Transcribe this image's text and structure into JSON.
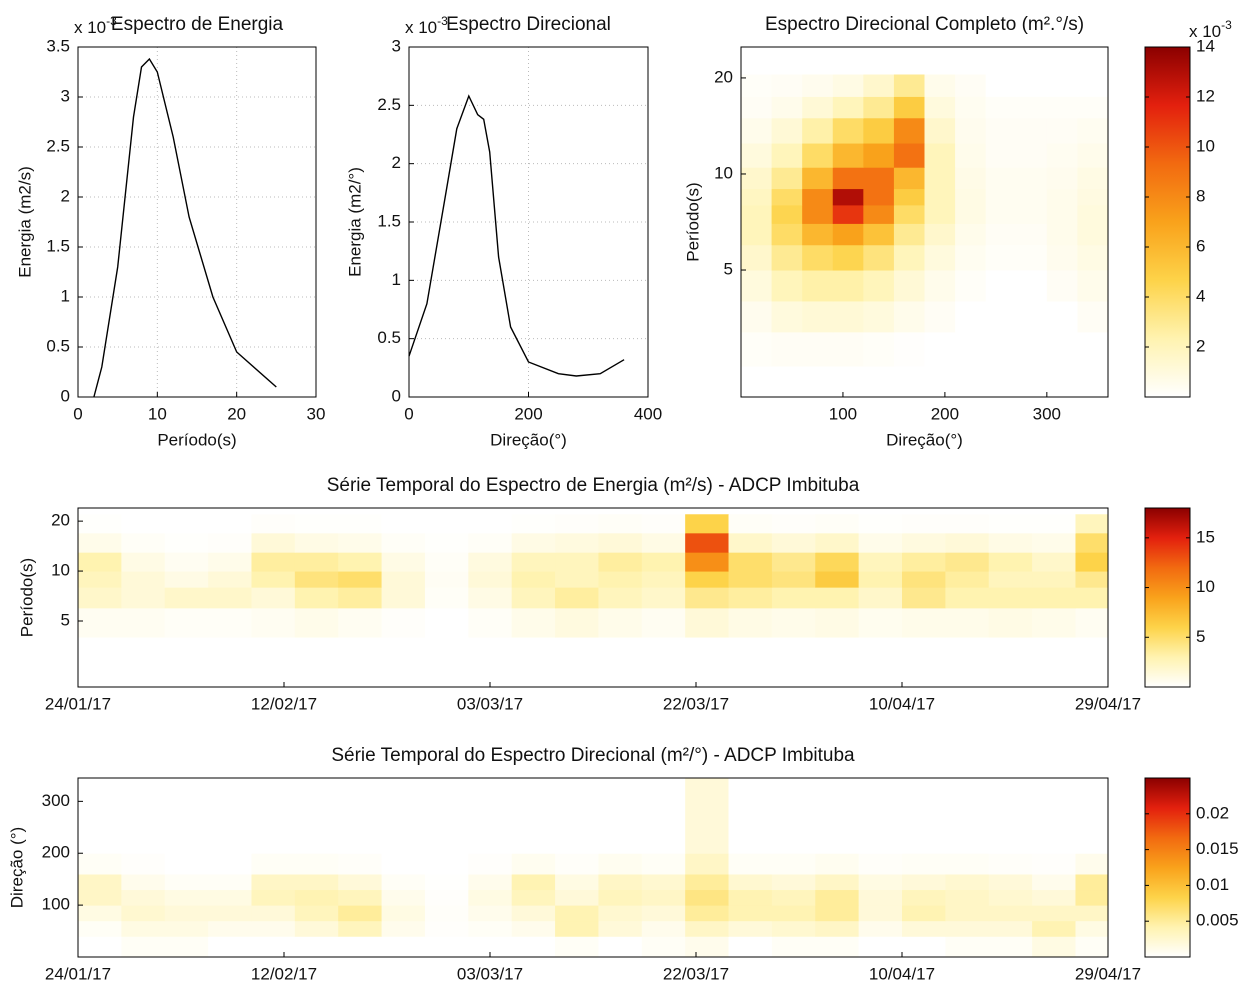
{
  "chart_data": [
    {
      "type": "line",
      "title": "Espectro de Energia",
      "xlabel": "Período(s)",
      "ylabel": "Energia (m2/s)",
      "y_scale_label": {
        "base": "x 10",
        "exponent": "-3"
      },
      "x": [
        2,
        3,
        5,
        7,
        8,
        9,
        10,
        12,
        14,
        17,
        20,
        25
      ],
      "values": [
        0,
        0.3,
        1.3,
        2.8,
        3.3,
        3.38,
        3.25,
        2.6,
        1.8,
        1.0,
        0.45,
        0.1
      ],
      "color": "#000000",
      "xlim": [
        0,
        30
      ],
      "xticks": [
        0,
        10,
        20,
        30
      ],
      "ylim": [
        0,
        3.5
      ],
      "yticks": [
        0,
        0.5,
        1,
        1.5,
        2,
        2.5,
        3,
        3.5
      ],
      "grid": true
    },
    {
      "type": "line",
      "title": "Espectro Direcional",
      "xlabel": "Direção(°)",
      "ylabel": "Energia (m2/°)",
      "y_scale_label": {
        "base": "x 10",
        "exponent": "-3"
      },
      "x": [
        0,
        30,
        60,
        80,
        100,
        115,
        125,
        135,
        150,
        170,
        200,
        250,
        280,
        320,
        360
      ],
      "values": [
        0.35,
        0.8,
        1.7,
        2.3,
        2.58,
        2.42,
        2.38,
        2.1,
        1.2,
        0.6,
        0.3,
        0.2,
        0.18,
        0.2,
        0.32
      ],
      "color": "#000000",
      "xlim": [
        0,
        400
      ],
      "xticks": [
        0,
        200,
        400
      ],
      "ylim": [
        0,
        3
      ],
      "yticks": [
        0,
        0.5,
        1,
        1.5,
        2,
        2.5,
        3
      ],
      "grid": true
    },
    {
      "type": "heatmap",
      "title": "Espectro Direcional Completo (m².°/s)",
      "xlabel": "Direção(°)",
      "ylabel": "Período(s)",
      "colorbar_scale_label": {
        "base": "x 10",
        "exponent": "-3"
      },
      "xbins": [
        0,
        30,
        60,
        90,
        120,
        150,
        180,
        210,
        240,
        270,
        300,
        330,
        360
      ],
      "ybins": [
        2.5,
        3.2,
        4,
        5,
        6,
        7,
        8,
        9,
        10.5,
        12.5,
        15,
        17.5,
        20.5
      ],
      "z": [
        [
          0.2,
          0.3,
          0.3,
          0.3,
          0.2,
          0.1,
          0,
          0,
          0,
          0,
          0,
          0
        ],
        [
          0.5,
          1,
          1.2,
          1.2,
          1,
          0.6,
          0.3,
          0,
          0,
          0,
          0,
          0.3
        ],
        [
          1,
          2,
          2.5,
          2.5,
          2,
          1.2,
          0.6,
          0.2,
          0,
          0,
          0.3,
          0.6
        ],
        [
          1.5,
          3,
          4,
          4.5,
          3.5,
          2,
          1,
          0.4,
          0.2,
          0.2,
          0.5,
          0.8
        ],
        [
          2,
          4,
          6,
          7,
          5.5,
          3,
          1.5,
          0.6,
          0.3,
          0.3,
          0.6,
          1
        ],
        [
          2,
          4.5,
          8,
          11,
          8,
          4,
          2,
          0.8,
          0.4,
          0.4,
          0.6,
          1
        ],
        [
          1.8,
          4,
          8,
          13,
          9,
          5,
          2,
          0.8,
          0.4,
          0.4,
          0.6,
          0.9
        ],
        [
          1.5,
          3,
          6,
          9,
          9,
          6,
          2,
          0.7,
          0.4,
          0.4,
          0.5,
          0.8
        ],
        [
          1,
          2,
          4,
          6,
          7,
          9,
          2,
          0.6,
          0.3,
          0.3,
          0.4,
          0.6
        ],
        [
          0.6,
          1.2,
          2.5,
          4,
          5,
          8,
          1.5,
          0.5,
          0.3,
          0.3,
          0.3,
          0.4
        ],
        [
          0.3,
          0.6,
          1.2,
          2,
          3,
          5,
          1,
          0.4,
          0.2,
          0.2,
          0.2,
          0.2
        ],
        [
          0.2,
          0.3,
          0.5,
          0.8,
          1.5,
          3,
          0.6,
          0.3,
          0,
          0,
          0,
          0
        ]
      ],
      "xlim": [
        0,
        360
      ],
      "xticks": [
        100,
        200,
        300
      ],
      "ylim": [
        2,
        25
      ],
      "yticks": [
        5,
        10,
        20
      ],
      "ylog": true,
      "clim": [
        0,
        14
      ],
      "colorbar_ticks": [
        2,
        4,
        6,
        8,
        10,
        12,
        14
      ],
      "colormap": [
        "#ffffff",
        "#fff3b0",
        "#fdd349",
        "#f9a21b",
        "#f26a10",
        "#e3200e",
        "#8b0000"
      ]
    },
    {
      "type": "heatmap",
      "title": "Série Temporal do Espectro de Energia (m²/s) - ADCP Imbituba",
      "ylabel": "Período(s)",
      "x": [
        "24/01/17",
        "28/01/17",
        "01/02/17",
        "05/02/17",
        "09/02/17",
        "13/02/17",
        "17/02/17",
        "21/02/17",
        "25/02/17",
        "01/03/17",
        "05/03/17",
        "09/03/17",
        "13/03/17",
        "17/03/17",
        "21/03/17",
        "25/03/17",
        "29/03/17",
        "02/04/17",
        "06/04/17",
        "10/04/17",
        "14/04/17",
        "18/04/17",
        "22/04/17",
        "26/04/17"
      ],
      "ybins": [
        4,
        6,
        8,
        10,
        13,
        17,
        22
      ],
      "z": [
        [
          0.5,
          0.5,
          0.3,
          0.3,
          0.5,
          0.8,
          0.5,
          0.2,
          0,
          0.3,
          0.8,
          1.2,
          0.8,
          0.5,
          1.5,
          1,
          0.8,
          1,
          0.6,
          0.8,
          0.8,
          1,
          0.8,
          0.5
        ],
        [
          2,
          1.5,
          2,
          2,
          1.5,
          3,
          3.5,
          1.5,
          0.3,
          1,
          2.5,
          3.5,
          2.5,
          2,
          4,
          3.5,
          3,
          3,
          2,
          4,
          3,
          3,
          3,
          3
        ],
        [
          2.5,
          1.5,
          1,
          1.5,
          3,
          4.5,
          5,
          1.5,
          0.4,
          1.5,
          3,
          2.5,
          3,
          2.5,
          6,
          5,
          4.5,
          6.5,
          3,
          4.5,
          3.5,
          2.5,
          2.5,
          4
        ],
        [
          3,
          1,
          0.5,
          0.8,
          3.5,
          3.5,
          3,
          1,
          0.3,
          1.2,
          2.5,
          2.5,
          3.5,
          3,
          10,
          5,
          4,
          5.5,
          2.5,
          3.5,
          4,
          3,
          2,
          6
        ],
        [
          0.8,
          0.3,
          0.1,
          0.2,
          1.5,
          1,
          0.8,
          0.3,
          0.1,
          0.3,
          1,
          1.2,
          1.5,
          1,
          13,
          2,
          1.5,
          2,
          0.8,
          1.2,
          1.5,
          1,
          0.8,
          5
        ],
        [
          0.1,
          0,
          0,
          0,
          0.2,
          0.1,
          0.1,
          0,
          0,
          0,
          0.1,
          0.2,
          0.3,
          0.2,
          6,
          0.3,
          0.2,
          0.3,
          0.1,
          0.2,
          0.2,
          0.1,
          0.1,
          2.5
        ]
      ],
      "xlim": [
        "24/01/17",
        "29/04/17"
      ],
      "xticks": [
        "24/01/17",
        "12/02/17",
        "03/03/17",
        "22/03/17",
        "10/04/17",
        "29/04/17"
      ],
      "ylim": [
        2,
        24
      ],
      "yticks": [
        5,
        10,
        20
      ],
      "ylog": true,
      "clim": [
        0,
        18
      ],
      "colorbar_ticks": [
        5,
        10,
        15
      ],
      "colormap": [
        "#ffffff",
        "#fff3b0",
        "#fdd349",
        "#f9a21b",
        "#f26a10",
        "#e3200e",
        "#8b0000"
      ]
    },
    {
      "type": "heatmap",
      "title": "Série Temporal do Espectro Direcional (m²/°) - ADCP Imbituba",
      "ylabel": "Direção (°)",
      "x": [
        "24/01/17",
        "28/01/17",
        "01/02/17",
        "05/02/17",
        "09/02/17",
        "13/02/17",
        "17/02/17",
        "21/02/17",
        "25/02/17",
        "01/03/17",
        "05/03/17",
        "09/03/17",
        "13/03/17",
        "17/03/17",
        "21/03/17",
        "25/03/17",
        "29/03/17",
        "02/04/17",
        "06/04/17",
        "10/04/17",
        "14/04/17",
        "18/04/17",
        "22/04/17",
        "26/04/17"
      ],
      "ybins": [
        0,
        40,
        70,
        100,
        130,
        160,
        200,
        345
      ],
      "z": [
        [
          0,
          0.0005,
          0.0005,
          0,
          0,
          0,
          0,
          0,
          0,
          0,
          0,
          0.0005,
          0,
          0.0005,
          0.001,
          0,
          0.0005,
          0.0005,
          0,
          0,
          0.0005,
          0.0005,
          0.0015,
          0.0005
        ],
        [
          0.0005,
          0.0015,
          0.0015,
          0.001,
          0.001,
          0.002,
          0.0035,
          0.001,
          0.0002,
          0.0005,
          0.001,
          0.004,
          0.002,
          0.001,
          0.003,
          0.002,
          0.0025,
          0.003,
          0.001,
          0.002,
          0.002,
          0.002,
          0.004,
          0.0015
        ],
        [
          0.0015,
          0.0025,
          0.002,
          0.002,
          0.002,
          0.0035,
          0.005,
          0.0015,
          0.0003,
          0.001,
          0.002,
          0.004,
          0.0025,
          0.002,
          0.005,
          0.004,
          0.004,
          0.005,
          0.002,
          0.004,
          0.003,
          0.003,
          0.003,
          0.003
        ],
        [
          0.003,
          0.002,
          0.0015,
          0.0015,
          0.0035,
          0.004,
          0.0035,
          0.001,
          0.0002,
          0.0015,
          0.0035,
          0.002,
          0.0035,
          0.003,
          0.006,
          0.004,
          0.0035,
          0.005,
          0.002,
          0.0035,
          0.003,
          0.0025,
          0.002,
          0.005
        ],
        [
          0.003,
          0.001,
          0.0005,
          0.0005,
          0.003,
          0.003,
          0.002,
          0.0005,
          0.0001,
          0.001,
          0.004,
          0.0015,
          0.003,
          0.0025,
          0.005,
          0.0025,
          0.002,
          0.003,
          0.0015,
          0.002,
          0.0025,
          0.002,
          0.001,
          0.005
        ],
        [
          0.0005,
          0.0002,
          0,
          0,
          0.0005,
          0.0005,
          0.0003,
          0,
          0,
          0.0002,
          0.0008,
          0.0003,
          0.0008,
          0.0005,
          0.003,
          0.0005,
          0.0005,
          0.0008,
          0.0003,
          0.0005,
          0.0005,
          0.0003,
          0.0002,
          0.001
        ],
        [
          0,
          0,
          0,
          0,
          0,
          0,
          0,
          0,
          0,
          0,
          0,
          0,
          0,
          0,
          0.002,
          0,
          0,
          0,
          0,
          0,
          0,
          0,
          0,
          0
        ]
      ],
      "xlim": [
        "24/01/17",
        "29/04/17"
      ],
      "xticks": [
        "24/01/17",
        "12/02/17",
        "03/03/17",
        "22/03/17",
        "10/04/17",
        "29/04/17"
      ],
      "ylim": [
        0,
        345
      ],
      "yticks": [
        100,
        200,
        300
      ],
      "clim": [
        0,
        0.025
      ],
      "colorbar_ticks": [
        0.005,
        0.01,
        0.015,
        0.02
      ],
      "colormap": [
        "#ffffff",
        "#fff3b0",
        "#fdd349",
        "#f9a21b",
        "#f26a10",
        "#e3200e",
        "#8b0000"
      ]
    }
  ]
}
